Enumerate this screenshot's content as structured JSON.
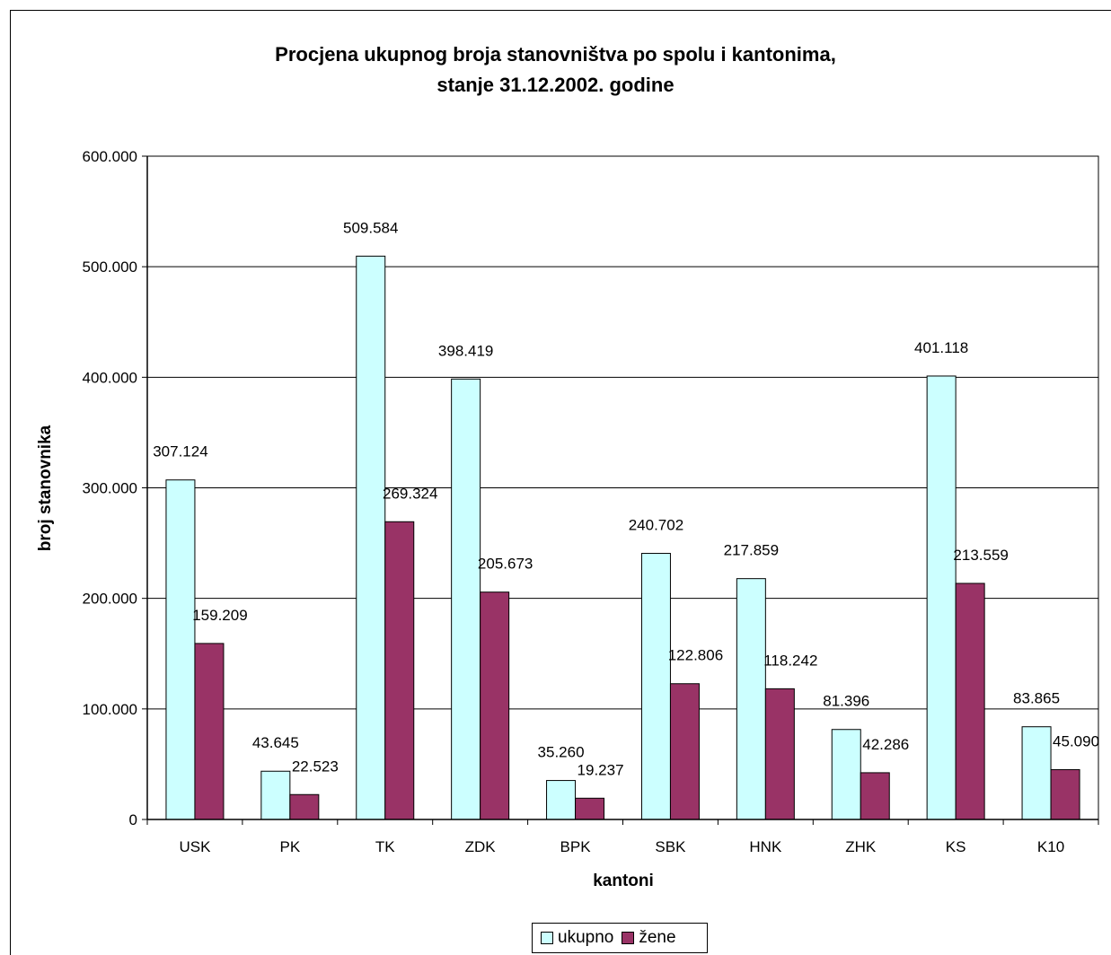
{
  "chart_data": {
    "type": "bar",
    "title_line1": "Procjena ukupnog broja stanovništva po spolu i kantonima,",
    "title_line2": "stanje 31.12.2002. godine",
    "xlabel": "kantoni",
    "ylabel": "broj stanovnika",
    "ylim": [
      0,
      600000
    ],
    "yticks": [
      0,
      100000,
      200000,
      300000,
      400000,
      500000,
      600000
    ],
    "ytick_labels": [
      "0",
      "100.000",
      "200.000",
      "300.000",
      "400.000",
      "500.000",
      "600.000"
    ],
    "grid": true,
    "legend_position": "bottom",
    "categories": [
      "USK",
      "PK",
      "TK",
      "ZDK",
      "BPK",
      "SBK",
      "HNK",
      "ZHK",
      "KS",
      "K10"
    ],
    "series": [
      {
        "name": "ukupno",
        "color": "#ccffff",
        "values": [
          307124,
          43645,
          509584,
          398419,
          35260,
          240702,
          217859,
          81396,
          401118,
          83865
        ],
        "labels": [
          "307.124",
          "43.645",
          "509.584",
          "398.419",
          "35.260",
          "240.702",
          "217.859",
          "81.396",
          "401.118",
          "83.865"
        ]
      },
      {
        "name": "žene",
        "color": "#993366",
        "values": [
          159209,
          22523,
          269324,
          205673,
          19237,
          122806,
          118242,
          42286,
          213559,
          45090
        ],
        "labels": [
          "159.209",
          "22.523",
          "269.324",
          "205.673",
          "19.237",
          "122.806",
          "118.242",
          "42.286",
          "213.559",
          "45.090"
        ]
      }
    ]
  }
}
